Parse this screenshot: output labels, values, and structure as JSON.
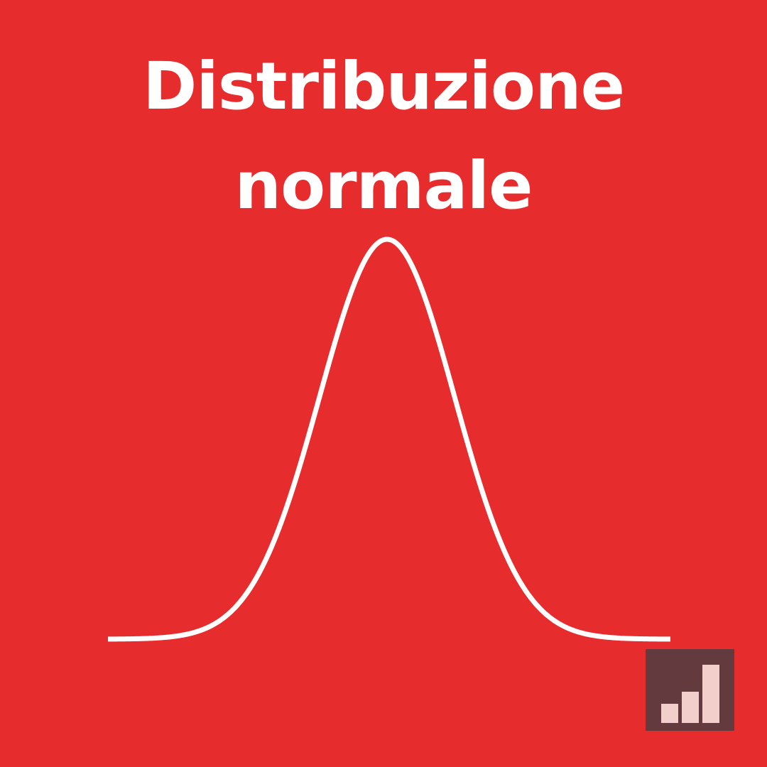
{
  "title": {
    "line1": "Distribuzione",
    "line2": "normale"
  },
  "colors": {
    "background": "#e72c2e",
    "curve": "#ffffff",
    "text": "#ffffff",
    "logo_background": "#633b3f",
    "logo_bars": "#f3cfcb"
  },
  "logo": {
    "icon": "bar-chart-icon"
  }
}
